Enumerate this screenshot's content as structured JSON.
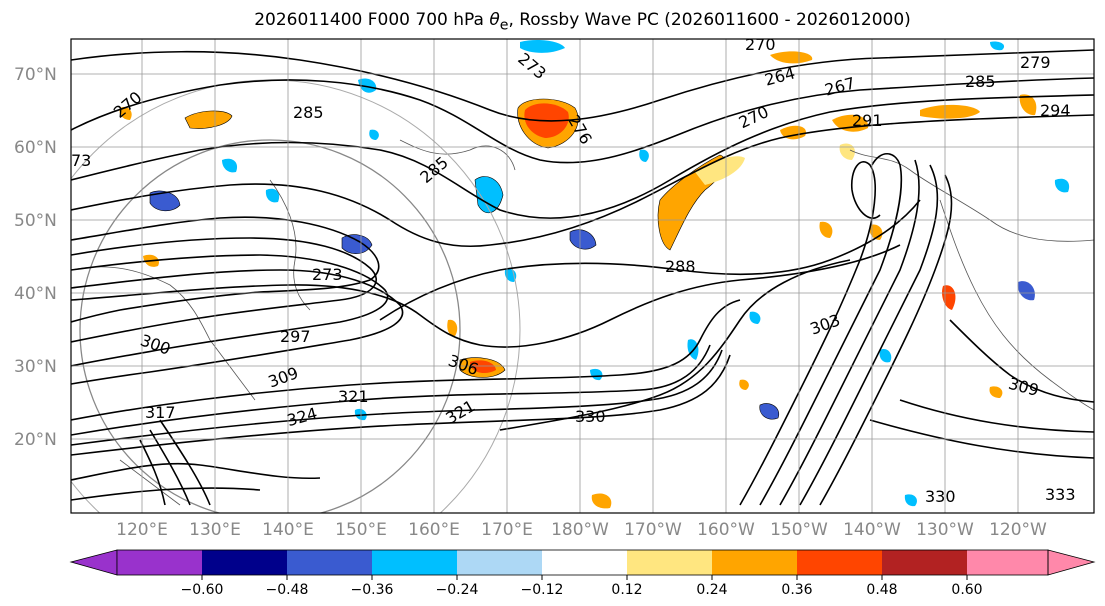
{
  "title_prefix": "2026011400 F000 700 hPa ",
  "title_theta": "θ",
  "title_sub": "e",
  "title_suffix": ", Rossby Wave PC (2026011600 - 2026012000)",
  "lat_labels": [
    "70°N",
    "60°N",
    "50°N",
    "40°N",
    "30°N",
    "20°N"
  ],
  "lon_labels": [
    "120°E",
    "130°E",
    "140°E",
    "150°E",
    "160°E",
    "170°E",
    "180°W",
    "170°W",
    "160°W",
    "150°W",
    "140°W",
    "130°W",
    "120°W"
  ],
  "colorbar": {
    "colors": [
      "#9932cc",
      "#00008b",
      "#3a5bd0",
      "#00bfff",
      "#add8f5",
      "#ffffff",
      "#ffe680",
      "#ffa500",
      "#ff4500",
      "#b22222",
      "#ff88aa"
    ],
    "ticks": [
      "−0.60",
      "−0.48",
      "−0.36",
      "−0.24",
      "−0.12",
      "0.12",
      "0.24",
      "0.36",
      "0.48",
      "0.60"
    ]
  },
  "contour_labels": [
    {
      "text": "270"
    },
    {
      "text": "273"
    },
    {
      "text": "264"
    },
    {
      "text": "267"
    },
    {
      "text": "285"
    },
    {
      "text": "279"
    },
    {
      "text": "294"
    },
    {
      "text": "270"
    },
    {
      "text": "291"
    },
    {
      "text": "285"
    },
    {
      "text": "285"
    },
    {
      "text": "270"
    },
    {
      "text": "276"
    },
    {
      "text": "73"
    },
    {
      "text": "288"
    },
    {
      "text": "303"
    },
    {
      "text": "297"
    },
    {
      "text": "300"
    },
    {
      "text": "306"
    },
    {
      "text": "309"
    },
    {
      "text": "321"
    },
    {
      "text": "324"
    },
    {
      "text": "321"
    },
    {
      "text": "330"
    },
    {
      "text": "309"
    },
    {
      "text": "317"
    },
    {
      "text": "330"
    },
    {
      "text": "333"
    },
    {
      "text": "273"
    }
  ]
}
